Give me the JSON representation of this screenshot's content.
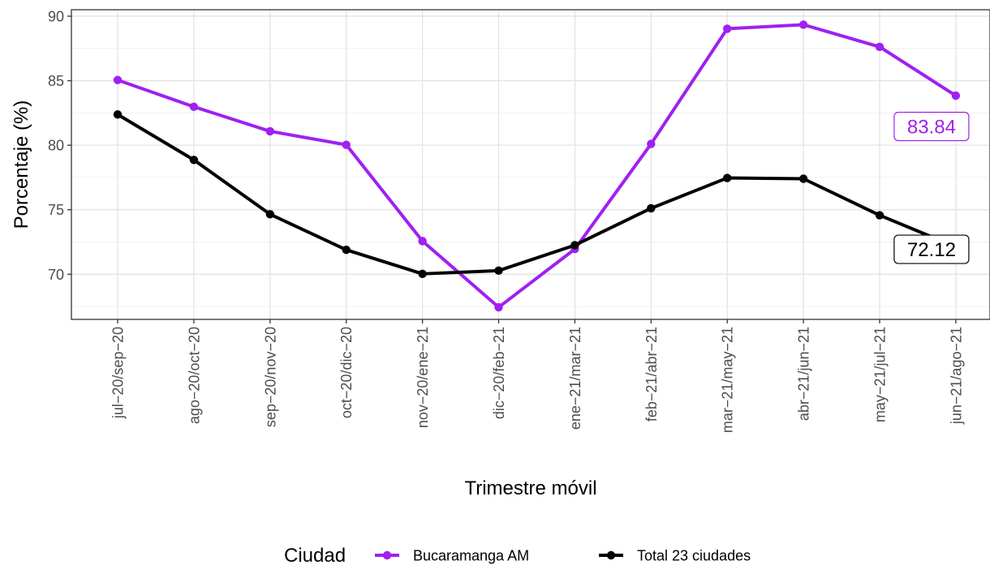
{
  "chart_data": {
    "type": "line",
    "xlabel": "Trimestre móvil",
    "ylabel": "Porcentaje (%)",
    "ylim": [
      66.5,
      90.5
    ],
    "yticks": [
      70,
      75,
      80,
      85,
      90
    ],
    "grid": true,
    "legend_position": "bottom",
    "legend_title": "Ciudad",
    "categories": [
      "jul−20/sep−20",
      "ago−20/oct−20",
      "sep−20/nov−20",
      "oct−20/dic−20",
      "nov−20/ene−21",
      "dic−20/feb−21",
      "ene−21/mar−21",
      "feb−21/abr−21",
      "mar−21/may−21",
      "abr−21/jun−21",
      "may−21/jul−21",
      "jun−21/ago−21"
    ],
    "series": [
      {
        "name": "Bucaramanga AM",
        "color": "#a020f0",
        "values": [
          85.05,
          82.98,
          81.08,
          80.03,
          72.57,
          67.44,
          71.95,
          80.1,
          89.03,
          89.34,
          87.62,
          83.84
        ],
        "end_label": "83.84"
      },
      {
        "name": "Total 23 ciudades",
        "color": "#000000",
        "values": [
          82.38,
          78.86,
          74.65,
          71.89,
          70.03,
          70.28,
          72.25,
          75.11,
          77.46,
          77.4,
          74.57,
          72.12
        ],
        "end_label": "72.12"
      }
    ]
  }
}
